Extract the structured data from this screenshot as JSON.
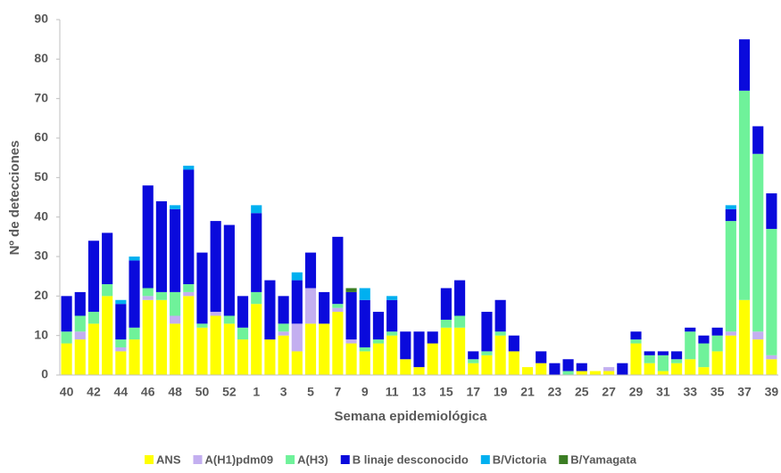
{
  "chart_data": {
    "type": "stacked_bar",
    "x_label": "Semana epidemiológica",
    "y_label": "Nº de detecciones",
    "categories": [
      "40",
      null,
      "42",
      null,
      "44",
      null,
      "46",
      null,
      "48",
      null,
      "50",
      null,
      "52",
      null,
      "1",
      null,
      "3",
      null,
      "5",
      null,
      "7",
      null,
      "9",
      null,
      "11",
      null,
      "13",
      null,
      "15",
      null,
      "17",
      null,
      "19",
      null,
      "21",
      null,
      "23",
      null,
      "25",
      null,
      "27",
      null,
      "29",
      null,
      "31",
      null,
      "33",
      null,
      "35",
      null,
      "37",
      null,
      "39"
    ],
    "ylim": [
      0,
      90
    ],
    "yticks": [
      0,
      10,
      20,
      30,
      40,
      50,
      60,
      70,
      80,
      90
    ],
    "series": [
      {
        "name": "ANS",
        "color": "#ffff00",
        "values": [
          8,
          9,
          13,
          20,
          6,
          9,
          19,
          19,
          13,
          20,
          12,
          15,
          13,
          9,
          18,
          9,
          10,
          6,
          13,
          13,
          16,
          8,
          6,
          8,
          10,
          4,
          2,
          8,
          12,
          12,
          3,
          5,
          10,
          6,
          2,
          3,
          0,
          0,
          1,
          1,
          1,
          0,
          8,
          3,
          1,
          3,
          4,
          2,
          6,
          10,
          19,
          9,
          4
        ]
      },
      {
        "name": "A(H1)pdm09",
        "color": "#c3aff0",
        "values": [
          0,
          2,
          0,
          0,
          1,
          0,
          1,
          0,
          2,
          1,
          0,
          1,
          0,
          0,
          0,
          0,
          1,
          7,
          9,
          0,
          1,
          1,
          0,
          0,
          0,
          0,
          0,
          0,
          0,
          0,
          0,
          0,
          0,
          0,
          0,
          0,
          0,
          0,
          0,
          0,
          1,
          0,
          0,
          0,
          0,
          0,
          0,
          0,
          0,
          1,
          0,
          2,
          1
        ]
      },
      {
        "name": "A(H3)",
        "color": "#6ff29a",
        "values": [
          3,
          4,
          3,
          3,
          2,
          3,
          2,
          2,
          6,
          2,
          1,
          0,
          2,
          3,
          3,
          0,
          2,
          0,
          0,
          0,
          1,
          0,
          1,
          1,
          1,
          0,
          0,
          0,
          2,
          3,
          1,
          1,
          1,
          0,
          0,
          0,
          0,
          1,
          0,
          0,
          0,
          0,
          1,
          2,
          4,
          1,
          7,
          6,
          4,
          28,
          53,
          45,
          32
        ]
      },
      {
        "name": "B linaje desconocido",
        "color": "#0a0adc",
        "values": [
          9,
          6,
          18,
          13,
          9,
          17,
          26,
          23,
          21,
          29,
          18,
          23,
          23,
          8,
          20,
          15,
          7,
          11,
          9,
          8,
          17,
          12,
          12,
          7,
          8,
          7,
          9,
          3,
          8,
          9,
          2,
          10,
          8,
          4,
          0,
          3,
          3,
          3,
          2,
          0,
          0,
          3,
          2,
          1,
          1,
          2,
          1,
          2,
          2,
          3,
          13,
          7,
          9
        ]
      },
      {
        "name": "B/Victoria",
        "color": "#00b0f0",
        "values": [
          0,
          0,
          0,
          0,
          1,
          1,
          0,
          0,
          1,
          1,
          0,
          0,
          0,
          0,
          2,
          0,
          0,
          2,
          0,
          0,
          0,
          0,
          3,
          0,
          1,
          0,
          0,
          0,
          0,
          0,
          0,
          0,
          0,
          0,
          0,
          0,
          0,
          0,
          0,
          0,
          0,
          0,
          0,
          0,
          0,
          0,
          0,
          0,
          0,
          1,
          0,
          0,
          0
        ]
      },
      {
        "name": "B/Yamagata",
        "color": "#3b7d23",
        "values": [
          0,
          0,
          0,
          0,
          0,
          0,
          0,
          0,
          0,
          0,
          0,
          0,
          0,
          0,
          0,
          0,
          0,
          0,
          0,
          0,
          0,
          1,
          0,
          0,
          0,
          0,
          0,
          0,
          0,
          0,
          0,
          0,
          0,
          0,
          0,
          0,
          0,
          0,
          0,
          0,
          0,
          0,
          0,
          0,
          0,
          0,
          0,
          0,
          0,
          0,
          0,
          0,
          0
        ]
      }
    ]
  }
}
